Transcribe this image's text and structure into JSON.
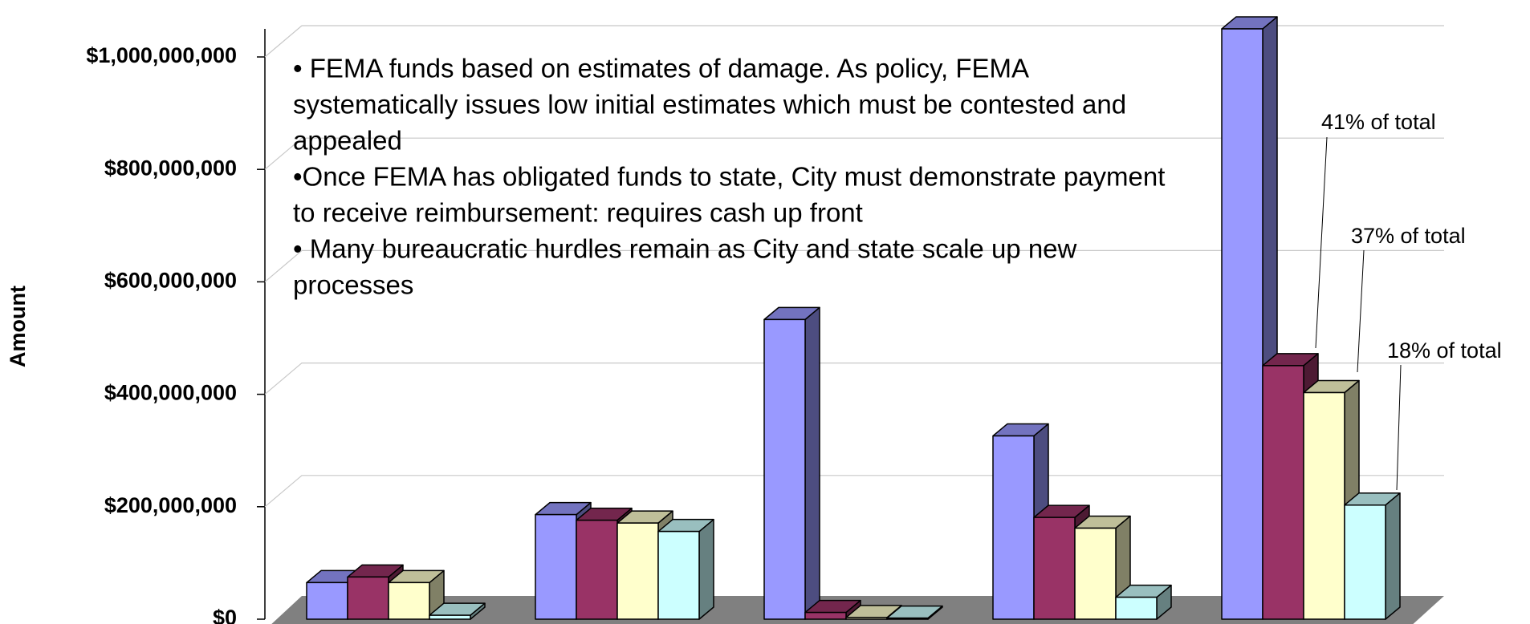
{
  "chart_data": {
    "type": "bar3d",
    "y_axis_label": "Amount",
    "categories": [
      null,
      null,
      null,
      null,
      null
    ],
    "series": [
      {
        "color": "#9999ff",
        "values": [
          65000000,
          186000000,
          533000000,
          326000000,
          1050000000
        ]
      },
      {
        "color": "#993366",
        "values": [
          75000000,
          176000000,
          12000000,
          181000000,
          451000000
        ]
      },
      {
        "color": "#ffffcc",
        "values": [
          65000000,
          171000000,
          3000000,
          162000000,
          403000000
        ]
      },
      {
        "color": "#ccffff",
        "values": [
          7000000,
          156000000,
          2000000,
          39000000,
          203000000
        ]
      }
    ],
    "ylim": [
      0,
      1000000000
    ],
    "yticks": [
      {
        "value": 0,
        "label": "$0"
      },
      {
        "value": 200000000,
        "label": "$200,000,000"
      },
      {
        "value": 400000000,
        "label": "$400,000,000"
      },
      {
        "value": 600000000,
        "label": "$600,000,000"
      },
      {
        "value": 800000000,
        "label": "$800,000,000"
      },
      {
        "value": 1000000000,
        "label": "$1,000,000,000"
      }
    ],
    "grid": true,
    "notes": [
      "• FEMA funds based on estimates of damage. As policy, FEMA",
      "systematically issues low initial estimates which must be contested and",
      "appealed",
      "•Once FEMA has obligated funds to state, City must demonstrate payment",
      "to receive reimbursement: requires cash up front",
      "• Many bureaucratic hurdles remain as City and state scale up new",
      "processes"
    ],
    "annotations": [
      "41% of total",
      "37% of total",
      "18% of total"
    ]
  }
}
